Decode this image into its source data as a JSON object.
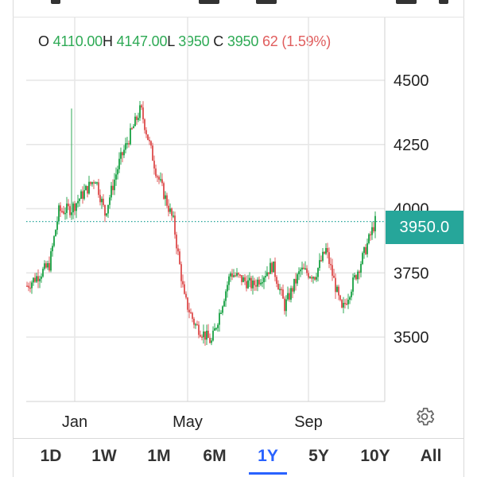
{
  "header": {
    "open_label": "O",
    "open_value": "4110.00",
    "high_label": "H",
    "high_value": "4147.00",
    "low_label": "L",
    "low_value": "3950",
    "close_label": "C",
    "close_value": "3950",
    "change_text": "62 (1.59%)"
  },
  "colors": {
    "up": "#2eaa55",
    "down": "#e05d5d",
    "badge": "#26a69a",
    "active": "#2962ff"
  },
  "chart": {
    "y_ticks": [
      "4500",
      "4250",
      "4000",
      "3750",
      "3500"
    ],
    "x_ticks": [
      "Jan",
      "May",
      "Sep"
    ],
    "current_price_label": "3950.0"
  },
  "icons": {
    "settings": "gear-icon"
  },
  "periods": [
    {
      "label": "1D",
      "active": false
    },
    {
      "label": "1W",
      "active": false
    },
    {
      "label": "1M",
      "active": false
    },
    {
      "label": "6M",
      "active": false
    },
    {
      "label": "1Y",
      "active": true
    },
    {
      "label": "5Y",
      "active": false
    },
    {
      "label": "10Y",
      "active": false
    },
    {
      "label": "All",
      "active": false
    }
  ],
  "chart_data": {
    "type": "candlestick",
    "title": "",
    "ylim": [
      3250,
      4600
    ],
    "y_axis_ticks": [
      3500,
      3750,
      4000,
      4250,
      4500
    ],
    "x_axis_ticks": [
      "Jan",
      "May",
      "Sep"
    ],
    "last_price": 3950,
    "price_points": [
      [
        "Nov",
        3700
      ],
      [
        "Dec",
        3780
      ],
      [
        "Jan",
        3990
      ],
      [
        "Jan",
        4000
      ],
      [
        "Feb",
        4120
      ],
      [
        "Feb",
        3980
      ],
      [
        "Mar",
        4180
      ],
      [
        "Mar",
        4390
      ],
      [
        "Apr",
        4150
      ],
      [
        "Apr",
        3950
      ],
      [
        "May",
        3650
      ],
      [
        "May",
        3550
      ],
      [
        "Jun",
        3480
      ],
      [
        "Jun",
        3750
      ],
      [
        "Jul",
        3700
      ],
      [
        "Jul",
        3780
      ],
      [
        "Aug",
        3620
      ],
      [
        "Aug",
        3760
      ],
      [
        "Sep",
        3740
      ],
      [
        "Sep",
        3840
      ],
      [
        "Oct",
        3600
      ],
      [
        "Nov",
        3800
      ],
      [
        "Nov",
        3950
      ]
    ]
  }
}
